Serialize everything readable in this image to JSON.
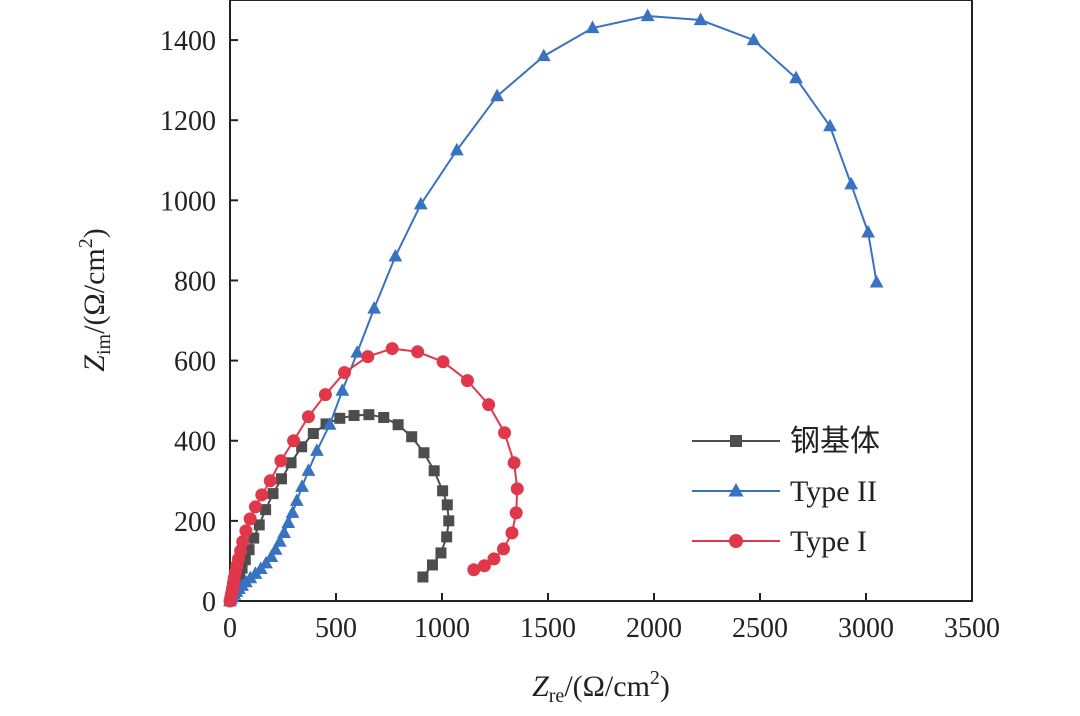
{
  "chart_data": {
    "type": "scatter",
    "title": "",
    "xlabel": {
      "symbol": "Z",
      "sub": "re",
      "unit": "/(Ω/cm",
      "sup": "2",
      "close": ")"
    },
    "ylabel": {
      "symbol": "Z",
      "sub": "im",
      "unit": "/(Ω/cm",
      "sup": "2",
      "close": ")"
    },
    "xlim": [
      0,
      3500
    ],
    "ylim": [
      0,
      1500
    ],
    "x_ticks": [
      "0",
      "500",
      "1000",
      "1500",
      "2000",
      "2500",
      "3000",
      "3500"
    ],
    "y_ticks": [
      "0",
      "200",
      "400",
      "600",
      "800",
      "1000",
      "1200",
      "1400"
    ],
    "grid": false,
    "legend_position": "right",
    "series": [
      {
        "name": "钢基体",
        "marker": "square",
        "color": "#4d4d4d",
        "x": [
          0,
          5,
          10,
          15,
          20,
          27,
          35,
          45,
          57,
          72,
          90,
          112,
          138,
          168,
          203,
          243,
          288,
          338,
          393,
          453,
          518,
          585,
          655,
          725,
          793,
          857,
          915,
          963,
          1003,
          1025,
          1032,
          1022,
          995,
          955,
          910
        ],
        "y": [
          0,
          6,
          13,
          20,
          28,
          38,
          50,
          64,
          82,
          103,
          128,
          157,
          190,
          228,
          268,
          305,
          345,
          385,
          418,
          442,
          456,
          463,
          465,
          458,
          440,
          410,
          370,
          325,
          275,
          240,
          200,
          160,
          120,
          90,
          60
        ]
      },
      {
        "name": "Type II",
        "marker": "triangle",
        "color": "#3a72c2",
        "x": [
          0,
          5,
          12,
          20,
          30,
          42,
          57,
          75,
          96,
          120,
          145,
          170,
          195,
          215,
          235,
          255,
          275,
          295,
          315,
          340,
          370,
          410,
          470,
          530,
          600,
          680,
          780,
          900,
          1070,
          1260,
          1480,
          1710,
          1970,
          2220,
          2470,
          2670,
          2830,
          2930,
          3010,
          3050
        ],
        "y": [
          0,
          5,
          10,
          16,
          23,
          30,
          38,
          47,
          57,
          68,
          80,
          94,
          110,
          128,
          148,
          170,
          195,
          220,
          250,
          285,
          325,
          375,
          440,
          525,
          620,
          730,
          860,
          990,
          1125,
          1260,
          1360,
          1430,
          1460,
          1450,
          1400,
          1305,
          1185,
          1040,
          920,
          795
        ]
      },
      {
        "name": "Type I",
        "marker": "circle",
        "color": "#e0384a",
        "x": [
          0,
          4,
          8,
          12,
          16,
          20,
          26,
          32,
          40,
          50,
          60,
          75,
          95,
          120,
          150,
          190,
          240,
          300,
          370,
          450,
          540,
          650,
          765,
          885,
          1005,
          1120,
          1220,
          1295,
          1340,
          1355,
          1350,
          1330,
          1290,
          1245,
          1200,
          1150
        ],
        "y": [
          0,
          10,
          20,
          32,
          45,
          58,
          72,
          88,
          105,
          125,
          148,
          175,
          205,
          235,
          265,
          300,
          350,
          400,
          460,
          515,
          570,
          610,
          630,
          622,
          597,
          550,
          490,
          420,
          345,
          280,
          220,
          170,
          130,
          105,
          88,
          78
        ]
      }
    ]
  }
}
